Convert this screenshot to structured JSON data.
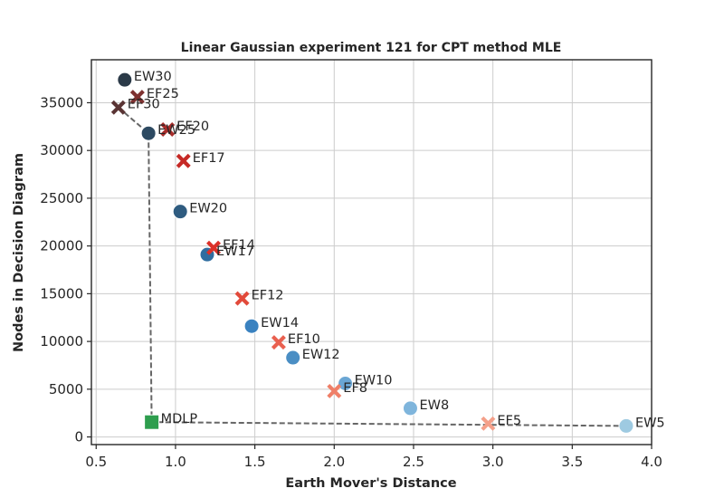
{
  "chart_data": {
    "type": "scatter",
    "title": "Linear Gaussian experiment 121 for CPT method MLE",
    "xlabel": "Earth Mover's Distance",
    "ylabel": "Nodes in Decision Diagram",
    "xlim": [
      0.47,
      4.0
    ],
    "ylim": [
      -800,
      39500
    ],
    "xticks": [
      0.5,
      1.0,
      1.5,
      2.0,
      2.5,
      3.0,
      3.5,
      4.0
    ],
    "xtick_labels": [
      "0.5",
      "1.0",
      "1.5",
      "2.0",
      "2.5",
      "3.0",
      "3.5",
      "4.0"
    ],
    "yticks": [
      0,
      5000,
      10000,
      15000,
      20000,
      25000,
      30000,
      35000
    ],
    "ytick_labels": [
      "0",
      "5000",
      "10000",
      "15000",
      "20000",
      "25000",
      "30000",
      "35000"
    ],
    "grid": true,
    "series": [
      {
        "marker": "circle",
        "points": [
          {
            "label": "EW5",
            "x": 3.84,
            "y": 1150,
            "color": "#9ecae1"
          },
          {
            "label": "EW8",
            "x": 2.48,
            "y": 3000,
            "color": "#7fb5dc"
          },
          {
            "label": "EW10",
            "x": 2.07,
            "y": 5600,
            "color": "#6aa6d4"
          },
          {
            "label": "EW12",
            "x": 1.74,
            "y": 8300,
            "color": "#4a8ec4"
          },
          {
            "label": "EW14",
            "x": 1.48,
            "y": 11600,
            "color": "#3a82c0"
          },
          {
            "label": "EW17",
            "x": 1.2,
            "y": 19100,
            "color": "#2f6da0"
          },
          {
            "label": "EW20",
            "x": 1.03,
            "y": 23600,
            "color": "#2f5c80"
          },
          {
            "label": "EW25",
            "x": 0.83,
            "y": 31800,
            "color": "#2d4a62"
          },
          {
            "label": "EW30",
            "x": 0.68,
            "y": 37400,
            "color": "#2b3a48"
          }
        ]
      },
      {
        "marker": "x",
        "points": [
          {
            "label": "EF5",
            "x": 2.97,
            "y": 1400,
            "color": "#f4a08a"
          },
          {
            "label": "EF8",
            "x": 2.0,
            "y": 4800,
            "color": "#ef7f68"
          },
          {
            "label": "EF10",
            "x": 1.65,
            "y": 9900,
            "color": "#e9604f"
          },
          {
            "label": "EF12",
            "x": 1.42,
            "y": 14500,
            "color": "#e24a3b"
          },
          {
            "label": "EF14",
            "x": 1.24,
            "y": 19800,
            "color": "#dc3028"
          },
          {
            "label": "EF17",
            "x": 1.05,
            "y": 28900,
            "color": "#c62a26"
          },
          {
            "label": "EF20",
            "x": 0.95,
            "y": 32200,
            "color": "#a82c2a"
          },
          {
            "label": "EF25",
            "x": 0.76,
            "y": 35600,
            "color": "#7e3130"
          },
          {
            "label": "EF30",
            "x": 0.64,
            "y": 34500,
            "color": "#5a3434"
          }
        ]
      },
      {
        "marker": "square",
        "points": [
          {
            "label": "MDLP",
            "x": 0.85,
            "y": 1550,
            "color": "#2e9e4e"
          }
        ]
      }
    ],
    "pareto_frontier": [
      {
        "x": 0.64,
        "y": 34500
      },
      {
        "x": 0.83,
        "y": 31800
      },
      {
        "x": 0.85,
        "y": 1550
      },
      {
        "x": 3.84,
        "y": 1150
      }
    ]
  }
}
